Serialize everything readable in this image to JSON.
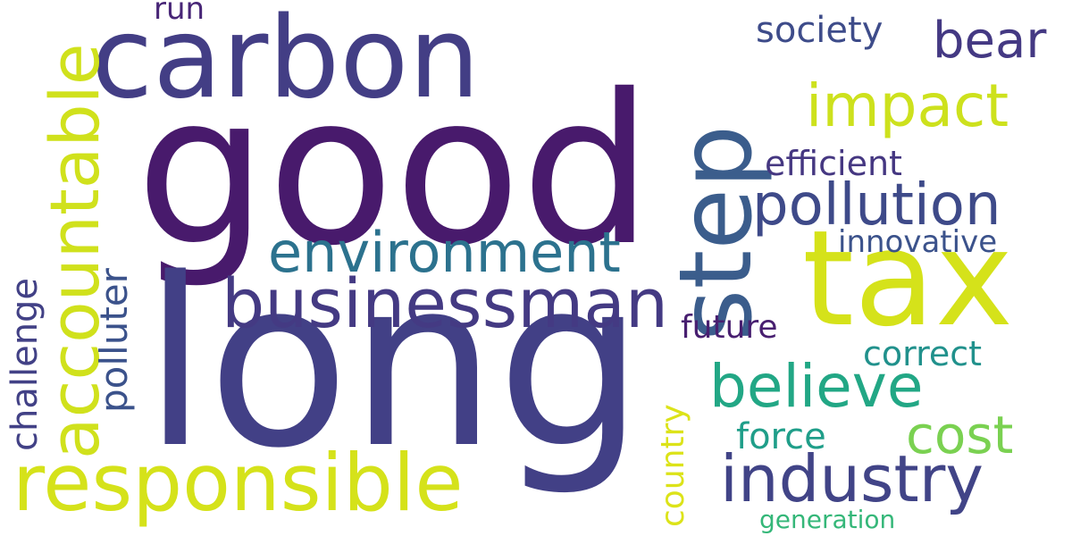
{
  "words": [
    {
      "text": "good",
      "color": "#481a6c"
    },
    {
      "text": "long",
      "color": "#424086"
    },
    {
      "text": "carbon",
      "color": "#433e85"
    },
    {
      "text": "tax",
      "color": "#d5e21a"
    },
    {
      "text": "step",
      "color": "#3b5d8c"
    },
    {
      "text": "responsible",
      "color": "#d5e21a"
    },
    {
      "text": "accountable",
      "color": "#d0e11c"
    },
    {
      "text": "businessman",
      "color": "#443a83"
    },
    {
      "text": "environment",
      "color": "#2c728e"
    },
    {
      "text": "pollution",
      "color": "#3e4a89"
    },
    {
      "text": "impact",
      "color": "#cde11d"
    },
    {
      "text": "industry",
      "color": "#414487"
    },
    {
      "text": "believe",
      "color": "#22a785"
    },
    {
      "text": "cost",
      "color": "#7ad151"
    },
    {
      "text": "bear",
      "color": "#443983"
    },
    {
      "text": "society",
      "color": "#3e4c8a"
    },
    {
      "text": "efficient",
      "color": "#453781"
    },
    {
      "text": "innovative",
      "color": "#3b528b"
    },
    {
      "text": "future",
      "color": "#481f70"
    },
    {
      "text": "correct",
      "color": "#21918c"
    },
    {
      "text": "force",
      "color": "#1f9e89"
    },
    {
      "text": "generation",
      "color": "#35b779"
    },
    {
      "text": "country",
      "color": "#dce319"
    },
    {
      "text": "challenge",
      "color": "#424186"
    },
    {
      "text": "polluter",
      "color": "#3b528b"
    },
    {
      "text": "run",
      "color": "#482677"
    }
  ]
}
